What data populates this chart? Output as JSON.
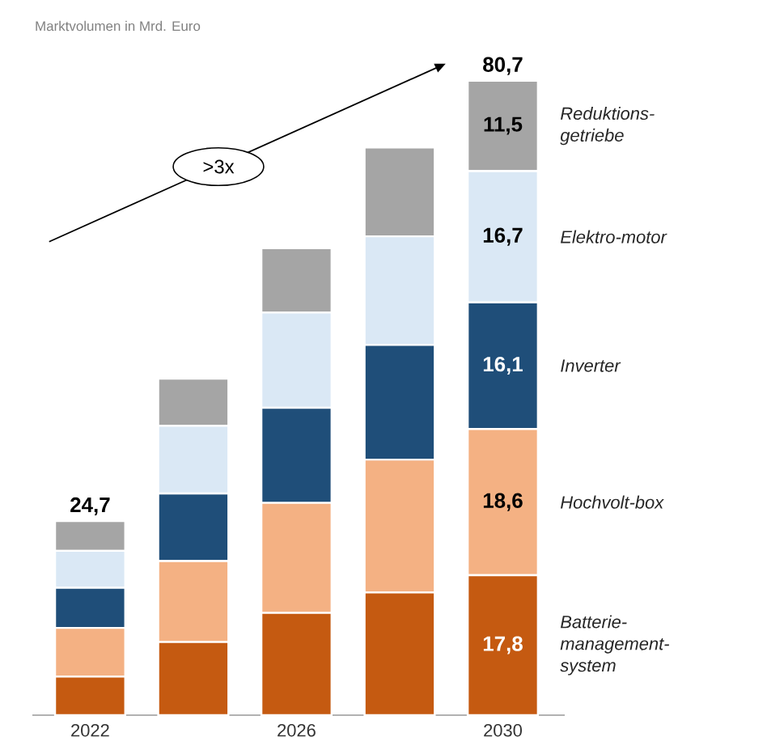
{
  "chart_data": {
    "type": "bar",
    "stacked": true,
    "title": "Marktvolumen in Mrd. Euro",
    "categories": [
      "2022",
      null,
      "2026",
      null,
      "2030"
    ],
    "series": [
      {
        "name": "Batterie-management-system",
        "color": "#c55a11",
        "values": [
          4.9,
          9.3,
          13.0,
          15.6,
          17.8
        ],
        "value_labels": [
          null,
          null,
          null,
          null,
          "17,8"
        ]
      },
      {
        "name": "Hochvolt-box",
        "color": "#f4b183",
        "values": [
          6.2,
          10.3,
          14.0,
          16.9,
          18.6
        ],
        "value_labels": [
          null,
          null,
          null,
          null,
          "18,6"
        ]
      },
      {
        "name": "Inverter",
        "color": "#1f4e79",
        "values": [
          5.1,
          8.6,
          12.1,
          14.6,
          16.1
        ],
        "value_labels": [
          null,
          null,
          null,
          null,
          "16,1"
        ]
      },
      {
        "name": "Elektro-motor",
        "color": "#dae8f5",
        "values": [
          4.7,
          8.6,
          12.1,
          13.8,
          16.7
        ],
        "value_labels": [
          null,
          null,
          null,
          null,
          "16,7"
        ]
      },
      {
        "name": "Reduktions-getriebe",
        "color": "#a5a5a5",
        "values": [
          3.8,
          6.0,
          8.2,
          11.3,
          11.5
        ],
        "value_labels": [
          null,
          null,
          null,
          null,
          "11,5"
        ]
      }
    ],
    "totals": [
      "24,7",
      null,
      null,
      null,
      "80,7"
    ],
    "annotations": [
      ">3x"
    ]
  }
}
